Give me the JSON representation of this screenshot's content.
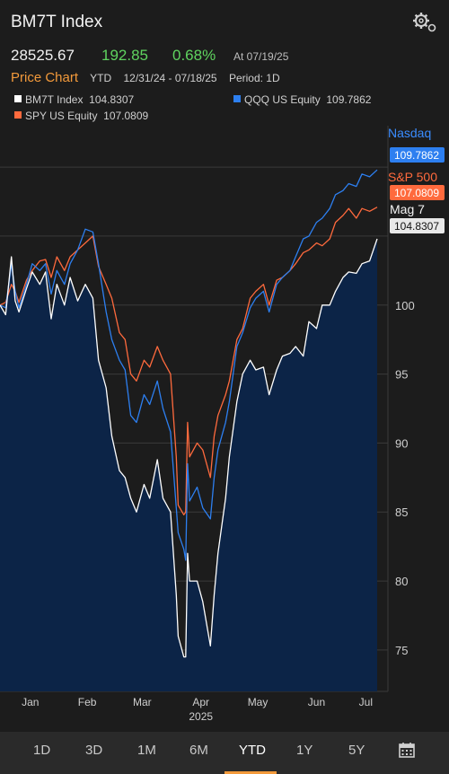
{
  "header": {
    "title": "BM7T Index"
  },
  "quote": {
    "price": "28525.67",
    "change": "192.85",
    "change_pct": "0.68%",
    "as_of": "At 07/19/25"
  },
  "price_chart": {
    "title": "Price Chart",
    "range_label": "YTD",
    "dates": "12/31/24 - 07/18/25",
    "period": "Period: 1D"
  },
  "legend": [
    {
      "label": "BM7T Index",
      "value": "104.8307",
      "color": "#ffffff"
    },
    {
      "label": "QQQ US Equity",
      "value": "109.7862",
      "color": "#2d7ff0"
    },
    {
      "label": "SPY US Equity",
      "value": "107.0809",
      "color": "#ff6a3d"
    }
  ],
  "annotations": {
    "nasdaq": "Nasdaq",
    "sp500": "S&P 500",
    "mag7": "Mag 7"
  },
  "chart_data": {
    "type": "line",
    "ylim": [
      72,
      113
    ],
    "y_ticks": [
      "100",
      "95",
      "90",
      "85",
      "80",
      "75"
    ],
    "x_ticks": [
      "Jan",
      "Feb",
      "Mar",
      "Apr",
      "May",
      "Jun",
      "Jul"
    ],
    "x_year": "2025",
    "x_range": [
      "2024-12-31",
      "2025-07-18"
    ],
    "series": [
      {
        "name": "BM7T Index",
        "color": "#ffffff",
        "last": "104.8307",
        "points": [
          [
            "2024-12-31",
            100
          ],
          [
            "2025-01-03",
            99.3
          ],
          [
            "2025-01-06",
            103.5
          ],
          [
            "2025-01-08",
            100.3
          ],
          [
            "2025-01-10",
            99.5
          ],
          [
            "2025-01-14",
            101.2
          ],
          [
            "2025-01-17",
            102.4
          ],
          [
            "2025-01-21",
            101.5
          ],
          [
            "2025-01-24",
            102.4
          ],
          [
            "2025-01-27",
            99
          ],
          [
            "2025-01-30",
            101.5
          ],
          [
            "2025-02-03",
            100
          ],
          [
            "2025-02-06",
            102
          ],
          [
            "2025-02-10",
            100.3
          ],
          [
            "2025-02-14",
            101.5
          ],
          [
            "2025-02-18",
            100.5
          ],
          [
            "2025-02-21",
            96
          ],
          [
            "2025-02-25",
            94
          ],
          [
            "2025-02-28",
            90.5
          ],
          [
            "2025-03-04",
            88
          ],
          [
            "2025-03-07",
            87.5
          ],
          [
            "2025-03-10",
            86
          ],
          [
            "2025-03-13",
            85
          ],
          [
            "2025-03-17",
            87
          ],
          [
            "2025-03-20",
            86
          ],
          [
            "2025-03-24",
            88.8
          ],
          [
            "2025-03-27",
            86
          ],
          [
            "2025-03-31",
            85
          ],
          [
            "2025-04-03",
            79
          ],
          [
            "2025-04-04",
            76
          ],
          [
            "2025-04-07",
            74.5
          ],
          [
            "2025-04-08",
            74.5
          ],
          [
            "2025-04-09",
            82
          ],
          [
            "2025-04-10",
            80
          ],
          [
            "2025-04-14",
            80
          ],
          [
            "2025-04-17",
            78.5
          ],
          [
            "2025-04-21",
            75.3
          ],
          [
            "2025-04-23",
            79
          ],
          [
            "2025-04-25",
            82
          ],
          [
            "2025-04-29",
            86
          ],
          [
            "2025-05-01",
            89
          ],
          [
            "2025-05-05",
            93
          ],
          [
            "2025-05-08",
            95
          ],
          [
            "2025-05-12",
            96
          ],
          [
            "2025-05-15",
            95.3
          ],
          [
            "2025-05-19",
            95.5
          ],
          [
            "2025-05-22",
            93.5
          ],
          [
            "2025-05-26",
            95.3
          ],
          [
            "2025-05-29",
            96.3
          ],
          [
            "2025-06-02",
            96.5
          ],
          [
            "2025-06-05",
            97
          ],
          [
            "2025-06-09",
            96.3
          ],
          [
            "2025-06-12",
            98.8
          ],
          [
            "2025-06-16",
            98.3
          ],
          [
            "2025-06-19",
            100
          ],
          [
            "2025-06-23",
            100
          ],
          [
            "2025-06-26",
            101
          ],
          [
            "2025-06-30",
            102
          ],
          [
            "2025-07-03",
            102.4
          ],
          [
            "2025-07-07",
            102.3
          ],
          [
            "2025-07-10",
            103
          ],
          [
            "2025-07-14",
            103.2
          ],
          [
            "2025-07-18",
            104.8
          ]
        ]
      },
      {
        "name": "QQQ US Equity",
        "color": "#2d7ff0",
        "last": "109.7862",
        "points": [
          [
            "2024-12-31",
            100
          ],
          [
            "2025-01-03",
            99.8
          ],
          [
            "2025-01-06",
            103
          ],
          [
            "2025-01-08",
            101
          ],
          [
            "2025-01-10",
            99.8
          ],
          [
            "2025-01-14",
            101.5
          ],
          [
            "2025-01-17",
            103
          ],
          [
            "2025-01-21",
            102.5
          ],
          [
            "2025-01-24",
            103
          ],
          [
            "2025-01-27",
            100.8
          ],
          [
            "2025-01-30",
            102.5
          ],
          [
            "2025-02-03",
            101.5
          ],
          [
            "2025-02-06",
            103
          ],
          [
            "2025-02-10",
            104
          ],
          [
            "2025-02-14",
            105.5
          ],
          [
            "2025-02-18",
            105.3
          ],
          [
            "2025-02-21",
            103
          ],
          [
            "2025-02-25",
            99.5
          ],
          [
            "2025-02-28",
            97.5
          ],
          [
            "2025-03-04",
            96
          ],
          [
            "2025-03-07",
            95.3
          ],
          [
            "2025-03-10",
            92
          ],
          [
            "2025-03-13",
            91.5
          ],
          [
            "2025-03-17",
            93.5
          ],
          [
            "2025-03-20",
            92.8
          ],
          [
            "2025-03-24",
            94.5
          ],
          [
            "2025-03-27",
            92.5
          ],
          [
            "2025-03-31",
            90.8
          ],
          [
            "2025-04-03",
            85.3
          ],
          [
            "2025-04-04",
            83.5
          ],
          [
            "2025-04-07",
            82.3
          ],
          [
            "2025-04-08",
            81.5
          ],
          [
            "2025-04-09",
            88.5
          ],
          [
            "2025-04-10",
            85.8
          ],
          [
            "2025-04-14",
            86.8
          ],
          [
            "2025-04-17",
            85.3
          ],
          [
            "2025-04-21",
            84.5
          ],
          [
            "2025-04-23",
            87.5
          ],
          [
            "2025-04-25",
            89.5
          ],
          [
            "2025-04-29",
            91.5
          ],
          [
            "2025-05-01",
            93
          ],
          [
            "2025-05-05",
            97
          ],
          [
            "2025-05-08",
            98
          ],
          [
            "2025-05-12",
            99.8
          ],
          [
            "2025-05-15",
            100.5
          ],
          [
            "2025-05-19",
            101
          ],
          [
            "2025-05-22",
            99.5
          ],
          [
            "2025-05-26",
            101.5
          ],
          [
            "2025-05-29",
            102
          ],
          [
            "2025-06-02",
            102.5
          ],
          [
            "2025-06-05",
            103.5
          ],
          [
            "2025-06-09",
            104.8
          ],
          [
            "2025-06-12",
            105
          ],
          [
            "2025-06-16",
            106
          ],
          [
            "2025-06-19",
            106.3
          ],
          [
            "2025-06-23",
            107
          ],
          [
            "2025-06-26",
            108
          ],
          [
            "2025-06-30",
            108.3
          ],
          [
            "2025-07-03",
            108.8
          ],
          [
            "2025-07-07",
            108.6
          ],
          [
            "2025-07-10",
            109.5
          ],
          [
            "2025-07-14",
            109.3
          ],
          [
            "2025-07-18",
            109.8
          ]
        ]
      },
      {
        "name": "SPY US Equity",
        "color": "#ff6a3d",
        "last": "107.0809",
        "points": [
          [
            "2024-12-31",
            100
          ],
          [
            "2025-01-03",
            100.2
          ],
          [
            "2025-01-06",
            101.5
          ],
          [
            "2025-01-08",
            101
          ],
          [
            "2025-01-10",
            100.2
          ],
          [
            "2025-01-14",
            101.8
          ],
          [
            "2025-01-17",
            102.5
          ],
          [
            "2025-01-21",
            103.2
          ],
          [
            "2025-01-24",
            103.3
          ],
          [
            "2025-01-27",
            102
          ],
          [
            "2025-01-30",
            103.5
          ],
          [
            "2025-02-03",
            102.5
          ],
          [
            "2025-02-06",
            103.5
          ],
          [
            "2025-02-10",
            104
          ],
          [
            "2025-02-14",
            104.5
          ],
          [
            "2025-02-18",
            105
          ],
          [
            "2025-02-21",
            102.8
          ],
          [
            "2025-02-25",
            101.5
          ],
          [
            "2025-02-28",
            100.5
          ],
          [
            "2025-03-04",
            98
          ],
          [
            "2025-03-07",
            97.5
          ],
          [
            "2025-03-10",
            95
          ],
          [
            "2025-03-13",
            94.5
          ],
          [
            "2025-03-17",
            96
          ],
          [
            "2025-03-20",
            95.5
          ],
          [
            "2025-03-24",
            97
          ],
          [
            "2025-03-27",
            96
          ],
          [
            "2025-03-31",
            95
          ],
          [
            "2025-04-03",
            89
          ],
          [
            "2025-04-04",
            85.5
          ],
          [
            "2025-04-07",
            84.8
          ],
          [
            "2025-04-08",
            85
          ],
          [
            "2025-04-09",
            91.5
          ],
          [
            "2025-04-10",
            89
          ],
          [
            "2025-04-14",
            90
          ],
          [
            "2025-04-17",
            89.5
          ],
          [
            "2025-04-21",
            87.5
          ],
          [
            "2025-04-23",
            90.5
          ],
          [
            "2025-04-25",
            92
          ],
          [
            "2025-04-29",
            93.5
          ],
          [
            "2025-05-01",
            94.5
          ],
          [
            "2025-05-05",
            97.5
          ],
          [
            "2025-05-08",
            98.3
          ],
          [
            "2025-05-12",
            100.5
          ],
          [
            "2025-05-15",
            101
          ],
          [
            "2025-05-19",
            101.5
          ],
          [
            "2025-05-22",
            100
          ],
          [
            "2025-05-26",
            101.8
          ],
          [
            "2025-05-29",
            102
          ],
          [
            "2025-06-02",
            102.5
          ],
          [
            "2025-06-05",
            103
          ],
          [
            "2025-06-09",
            103.8
          ],
          [
            "2025-06-12",
            104
          ],
          [
            "2025-06-16",
            104.5
          ],
          [
            "2025-06-19",
            104.3
          ],
          [
            "2025-06-23",
            104.8
          ],
          [
            "2025-06-26",
            106
          ],
          [
            "2025-06-30",
            106.5
          ],
          [
            "2025-07-03",
            107
          ],
          [
            "2025-07-07",
            106.3
          ],
          [
            "2025-07-10",
            107
          ],
          [
            "2025-07-14",
            106.8
          ],
          [
            "2025-07-18",
            107.1
          ]
        ]
      }
    ]
  },
  "tabs": [
    {
      "label": "1D",
      "active": false
    },
    {
      "label": "3D",
      "active": false
    },
    {
      "label": "1M",
      "active": false
    },
    {
      "label": "6M",
      "active": false
    },
    {
      "label": "YTD",
      "active": true
    },
    {
      "label": "1Y",
      "active": false
    },
    {
      "label": "5Y",
      "active": false
    }
  ],
  "icons": {
    "settings": "gears-icon",
    "calendar": "calendar-icon"
  }
}
